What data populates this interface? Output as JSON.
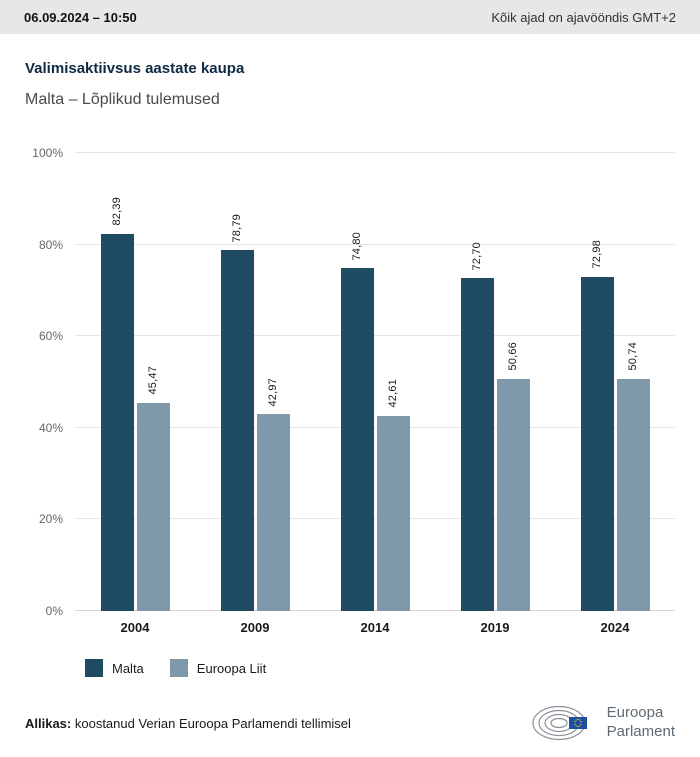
{
  "header": {
    "datetime": "06.09.2024 – 10:50",
    "timezone_note": "Kõik ajad on ajavööndis GMT+2"
  },
  "title": "Valimisaktiivsus aastate kaupa",
  "subtitle": "Malta – Lõplikud tulemused",
  "chart_data": {
    "type": "bar",
    "categories": [
      "2004",
      "2009",
      "2014",
      "2019",
      "2024"
    ],
    "series": [
      {
        "name": "Malta",
        "color": "#1f4b63",
        "values": [
          82.39,
          78.79,
          74.8,
          72.7,
          72.98
        ],
        "labels": [
          "82,39",
          "78,79",
          "74,80",
          "72,70",
          "72,98"
        ]
      },
      {
        "name": "Euroopa Liit",
        "color": "#8099aa",
        "values": [
          45.47,
          42.97,
          42.61,
          50.66,
          50.74
        ],
        "labels": [
          "45,47",
          "42,97",
          "42,61",
          "50,66",
          "50,74"
        ]
      }
    ],
    "title": "Valimisaktiivsus aastate kaupa",
    "subtitle": "Malta – Lõplikud tulemused",
    "xlabel": "",
    "ylabel": "",
    "ylim": [
      0,
      100
    ],
    "yticks": [
      "0%",
      "20%",
      "40%",
      "60%",
      "80%",
      "100%"
    ],
    "grid": true,
    "legend_position": "bottom"
  },
  "legend": [
    {
      "label": "Malta"
    },
    {
      "label": "Euroopa Liit"
    }
  ],
  "footer": {
    "source_label": "Allikas:",
    "source_text": " koostanud Verian Euroopa Parlamendi tellimisel",
    "logo_line1": "Euroopa",
    "logo_line2": "Parlament"
  }
}
